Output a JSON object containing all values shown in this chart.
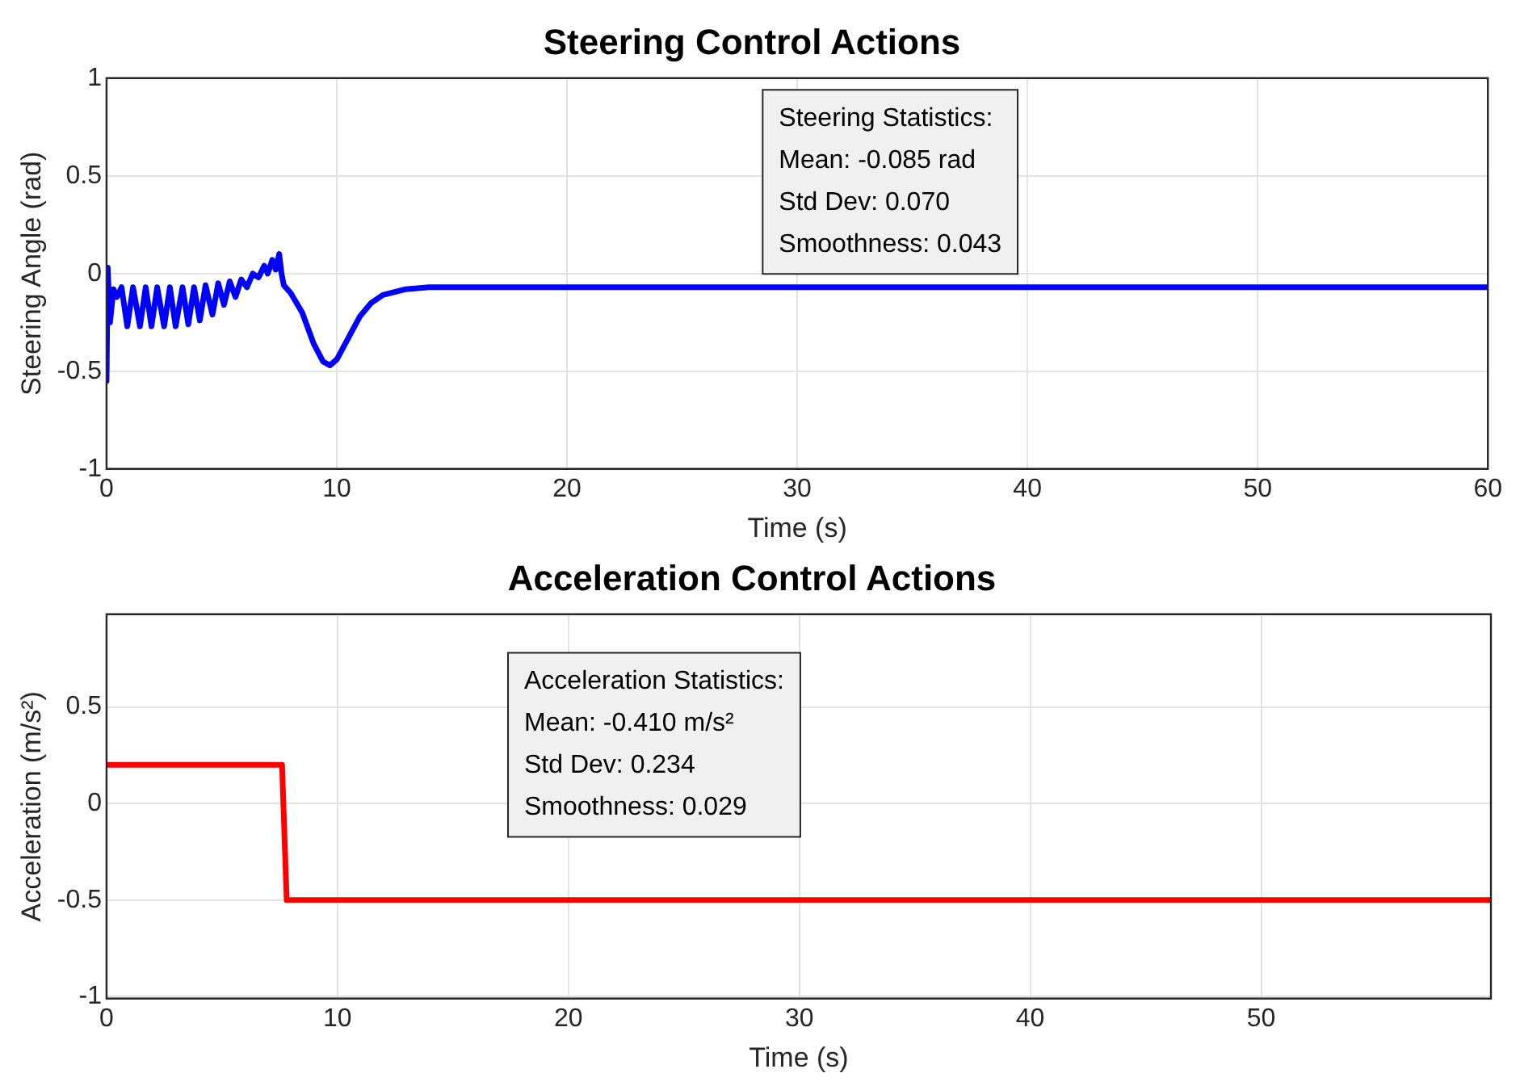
{
  "chart_data": [
    {
      "type": "line",
      "title": "Steering Control Actions",
      "xlabel": "Time (s)",
      "ylabel": "Steering Angle (rad)",
      "xlim": [
        0,
        60
      ],
      "xticks": [
        0,
        10,
        20,
        30,
        40,
        50,
        60
      ],
      "ylim": [
        -1,
        1
      ],
      "yticks": [
        -1,
        -0.5,
        0,
        0.5,
        1
      ],
      "grid": true,
      "marker": "none",
      "line_style": "solid",
      "annotations": [
        "Steering Statistics:",
        "Mean: -0.085 rad",
        "Std Dev: 0.070",
        "Smoothness: 0.043"
      ],
      "series": [
        {
          "color": "#0000ff",
          "x": [
            0,
            0.05,
            0.15,
            0.3,
            0.45,
            0.65,
            0.9,
            1.15,
            1.45,
            1.7,
            1.95,
            2.2,
            2.5,
            2.75,
            3.0,
            3.3,
            3.55,
            3.8,
            4.05,
            4.3,
            4.6,
            4.85,
            5.1,
            5.35,
            5.6,
            5.85,
            6.1,
            6.35,
            6.6,
            6.85,
            7.0,
            7.2,
            7.35,
            7.5,
            7.6,
            7.7,
            8.0,
            8.5,
            9.0,
            9.4,
            9.7,
            10.0,
            10.5,
            11,
            11.5,
            12,
            13,
            14,
            15,
            60
          ],
          "values": [
            -0.55,
            0.03,
            -0.25,
            -0.08,
            -0.12,
            -0.07,
            -0.27,
            -0.07,
            -0.27,
            -0.07,
            -0.27,
            -0.07,
            -0.27,
            -0.07,
            -0.27,
            -0.07,
            -0.26,
            -0.07,
            -0.24,
            -0.06,
            -0.21,
            -0.05,
            -0.16,
            -0.04,
            -0.12,
            -0.03,
            -0.07,
            0.0,
            -0.02,
            0.04,
            0.0,
            0.07,
            0.02,
            0.1,
            0.0,
            -0.06,
            -0.1,
            -0.2,
            -0.36,
            -0.45,
            -0.47,
            -0.44,
            -0.33,
            -0.22,
            -0.15,
            -0.11,
            -0.08,
            -0.07,
            -0.07,
            -0.07
          ]
        }
      ]
    },
    {
      "type": "line",
      "title": "Acceleration Control Actions",
      "xlabel": "Time (s)",
      "ylabel": "Acceleration (m/s²)",
      "xlim": [
        0,
        59.95
      ],
      "xticks": [
        0,
        10,
        20,
        30,
        40,
        50
      ],
      "ylim": [
        -1.01,
        0.98
      ],
      "yticks": [
        -1,
        -0.5,
        0,
        0.5
      ],
      "grid": true,
      "marker": "none",
      "line_style": "solid",
      "annotations": [
        "Acceleration Statistics:",
        "Mean: -0.410 m/s²",
        "Std Dev: 0.234",
        "Smoothness: 0.029"
      ],
      "series": [
        {
          "color": "#ff0000",
          "x": [
            0,
            7.6,
            7.8,
            59.95
          ],
          "values": [
            0.2,
            0.2,
            -0.5,
            -0.5
          ]
        }
      ]
    }
  ]
}
